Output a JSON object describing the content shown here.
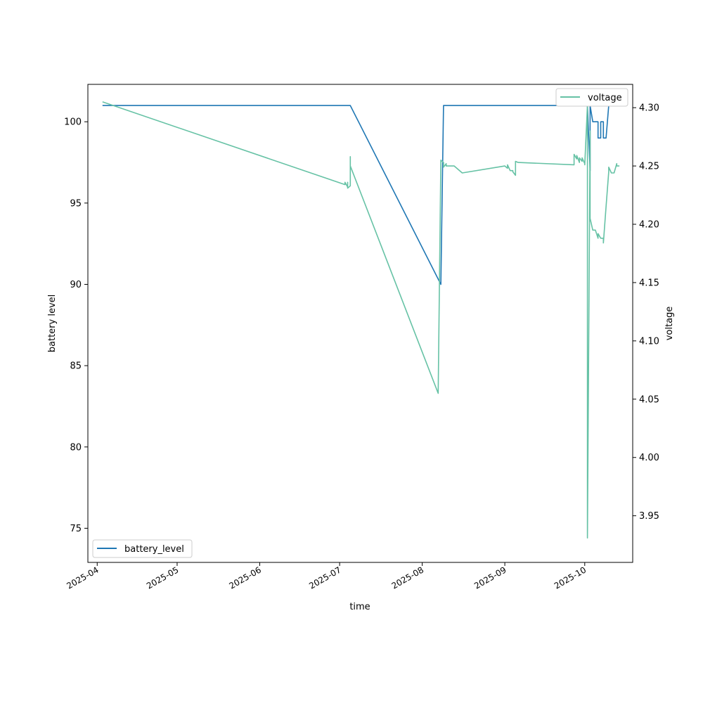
{
  "chart_data": {
    "type": "line",
    "xlabel": "time",
    "x_ticks": [
      "2025-04",
      "2025-05",
      "2025-06",
      "2025-07",
      "2025-08",
      "2025-09",
      "2025-10"
    ],
    "left_axis": {
      "label": "battery level",
      "ylim": [
        72.9,
        102.3
      ],
      "ticks": [
        75,
        80,
        85,
        90,
        95,
        100
      ]
    },
    "right_axis": {
      "label": "voltage",
      "ylim": [
        3.91,
        4.32
      ],
      "ticks": [
        3.95,
        4.0,
        4.05,
        4.1,
        4.15,
        4.2,
        4.25,
        4.3
      ]
    },
    "series": [
      {
        "name": "battery_level",
        "axis": "left",
        "color": "#1f77b4",
        "legend": "lower-left",
        "points": [
          [
            "2025-04-03",
            101
          ],
          [
            "2025-07-05",
            101
          ],
          [
            "2025-08-08",
            90
          ],
          [
            "2025-08-09",
            101
          ],
          [
            "2025-10-02",
            101
          ],
          [
            "2025-10-03",
            97
          ],
          [
            "2025-10-03",
            101
          ],
          [
            "2025-10-04",
            100
          ],
          [
            "2025-10-06",
            100
          ],
          [
            "2025-10-06",
            99
          ],
          [
            "2025-10-07",
            99
          ],
          [
            "2025-10-07",
            100
          ],
          [
            "2025-10-08",
            100
          ],
          [
            "2025-10-08",
            99
          ],
          [
            "2025-10-09",
            99
          ],
          [
            "2025-10-10",
            101
          ],
          [
            "2025-10-13",
            101
          ]
        ]
      },
      {
        "name": "voltage",
        "axis": "right",
        "color": "#66c2a5",
        "legend": "upper-right",
        "points": [
          [
            "2025-04-03",
            4.305
          ],
          [
            "2025-07-03",
            4.234
          ],
          [
            "2025-07-03",
            4.236
          ],
          [
            "2025-07-04",
            4.232
          ],
          [
            "2025-07-04",
            4.236
          ],
          [
            "2025-07-04",
            4.231
          ],
          [
            "2025-07-05",
            4.233
          ],
          [
            "2025-07-05",
            4.258
          ],
          [
            "2025-07-05",
            4.25
          ],
          [
            "2025-08-07",
            4.055
          ],
          [
            "2025-08-08",
            4.255
          ],
          [
            "2025-08-09",
            4.253
          ],
          [
            "2025-08-09",
            4.249
          ],
          [
            "2025-08-10",
            4.252
          ],
          [
            "2025-08-10",
            4.25
          ],
          [
            "2025-08-13",
            4.25
          ],
          [
            "2025-08-16",
            4.244
          ],
          [
            "2025-09-01",
            4.25
          ],
          [
            "2025-09-02",
            4.248
          ],
          [
            "2025-09-02",
            4.251
          ],
          [
            "2025-09-03",
            4.246
          ],
          [
            "2025-09-04",
            4.246
          ],
          [
            "2025-09-04",
            4.245
          ],
          [
            "2025-09-05",
            4.242
          ],
          [
            "2025-09-05",
            4.254
          ],
          [
            "2025-09-06",
            4.253
          ],
          [
            "2025-09-27",
            4.251
          ],
          [
            "2025-09-27",
            4.26
          ],
          [
            "2025-09-28",
            4.256
          ],
          [
            "2025-09-28",
            4.259
          ],
          [
            "2025-09-29",
            4.253
          ],
          [
            "2025-09-29",
            4.257
          ],
          [
            "2025-09-30",
            4.254
          ],
          [
            "2025-09-30",
            4.257
          ],
          [
            "2025-10-01",
            4.252
          ],
          [
            "2025-10-01",
            4.251
          ],
          [
            "2025-10-02",
            4.302
          ],
          [
            "2025-10-02",
            3.931
          ],
          [
            "2025-10-03",
            4.28
          ],
          [
            "2025-10-03",
            4.205
          ],
          [
            "2025-10-04",
            4.195
          ],
          [
            "2025-10-05",
            4.195
          ],
          [
            "2025-10-06",
            4.188
          ],
          [
            "2025-10-06",
            4.192
          ],
          [
            "2025-10-07",
            4.188
          ],
          [
            "2025-10-08",
            4.188
          ],
          [
            "2025-10-08",
            4.184
          ],
          [
            "2025-10-09",
            4.215
          ],
          [
            "2025-10-10",
            4.245
          ],
          [
            "2025-10-10",
            4.249
          ],
          [
            "2025-10-11",
            4.244
          ],
          [
            "2025-10-12",
            4.244
          ],
          [
            "2025-10-13",
            4.252
          ],
          [
            "2025-10-13",
            4.25
          ],
          [
            "2025-10-14",
            4.25
          ]
        ]
      }
    ]
  }
}
